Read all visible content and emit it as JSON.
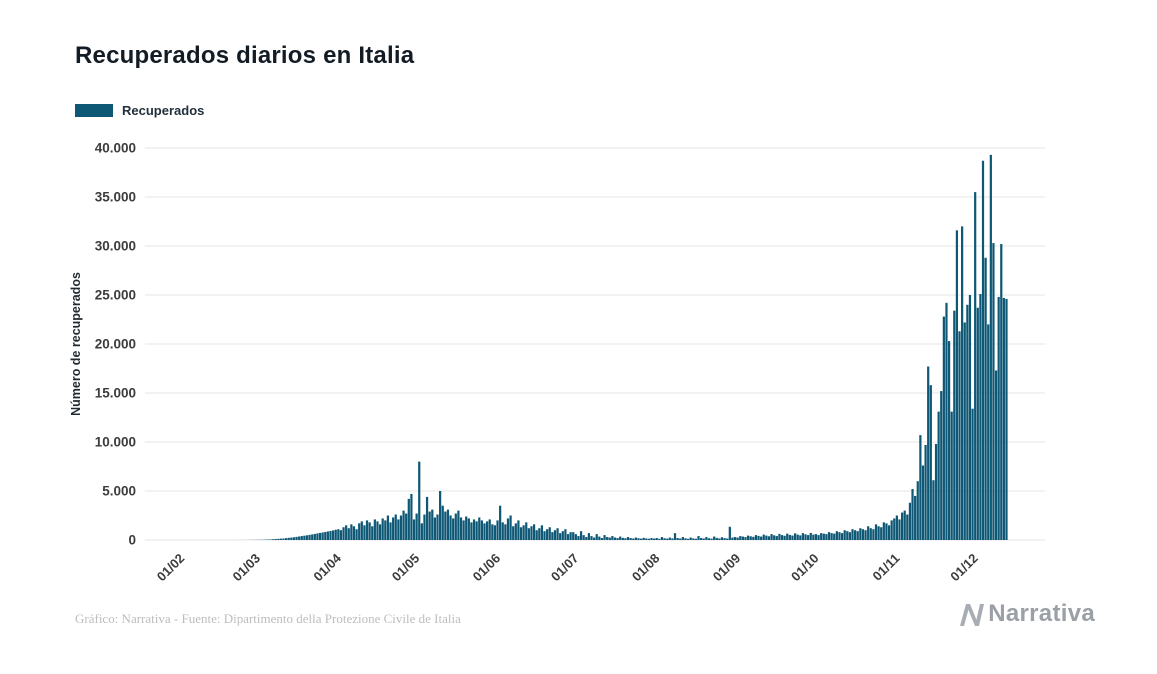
{
  "header": {
    "title": "Recuperados diarios en Italia"
  },
  "legend": {
    "label": "Recuperados"
  },
  "footer": {
    "credit": "Gráfico: Narrativa - Fuente: Dipartimento della Protezione Civile de Italia"
  },
  "brand": {
    "name": "Narrativa"
  },
  "colors": {
    "bar": "#0e5876",
    "grid": "#e4e4e4",
    "axis_text": "#3c3c3c",
    "title_text": "#131c24",
    "footer_text": "#bdbdbd",
    "brand_text": "#9aa0a6"
  },
  "chart_data": {
    "type": "bar",
    "title": "Recuperados diarios en Italia",
    "xlabel": "",
    "ylabel": "Número de recuperados",
    "ylim": [
      0,
      40000
    ],
    "grid": "horizontal",
    "legend_position": "top-left",
    "series_name": "Recuperados",
    "y_ticks": [
      {
        "value": 0,
        "label": "0"
      },
      {
        "value": 5000,
        "label": "5.000"
      },
      {
        "value": 10000,
        "label": "10.000"
      },
      {
        "value": 15000,
        "label": "15.000"
      },
      {
        "value": 20000,
        "label": "20.000"
      },
      {
        "value": 25000,
        "label": "25.000"
      },
      {
        "value": 30000,
        "label": "30.000"
      },
      {
        "value": 35000,
        "label": "35.000"
      },
      {
        "value": 40000,
        "label": "40.000"
      }
    ],
    "x_ticks": [
      {
        "index": 0,
        "label": "01/02"
      },
      {
        "index": 29,
        "label": "01/03"
      },
      {
        "index": 60,
        "label": "01/04"
      },
      {
        "index": 90,
        "label": "01/05"
      },
      {
        "index": 121,
        "label": "01/06"
      },
      {
        "index": 151,
        "label": "01/07"
      },
      {
        "index": 182,
        "label": "01/08"
      },
      {
        "index": 213,
        "label": "01/09"
      },
      {
        "index": 243,
        "label": "01/10"
      },
      {
        "index": 274,
        "label": "01/11"
      },
      {
        "index": 304,
        "label": "01/12"
      }
    ],
    "values": [
      0,
      0,
      0,
      0,
      0,
      0,
      0,
      0,
      0,
      0,
      0,
      0,
      0,
      0,
      0,
      0,
      0,
      0,
      0,
      0,
      1,
      1,
      2,
      2,
      3,
      3,
      5,
      8,
      12,
      15,
      20,
      25,
      30,
      40,
      50,
      60,
      80,
      100,
      120,
      140,
      160,
      190,
      220,
      250,
      280,
      320,
      360,
      400,
      440,
      480,
      520,
      570,
      620,
      670,
      720,
      770,
      820,
      870,
      920,
      980,
      1050,
      1100,
      1000,
      1300,
      1500,
      1200,
      1600,
      1400,
      1100,
      1700,
      1900,
      1500,
      2000,
      1800,
      1400,
      2100,
      1900,
      1600,
      2200,
      2000,
      2500,
      1800,
      2300,
      2600,
      2100,
      2500,
      3000,
      2700,
      4200,
      4700,
      2100,
      2700,
      8000,
      1700,
      2600,
      4400,
      2900,
      3100,
      2300,
      2600,
      5000,
      3500,
      2900,
      3100,
      2500,
      2200,
      2700,
      3000,
      2300,
      2000,
      2400,
      2200,
      1800,
      2100,
      1900,
      2300,
      2000,
      1700,
      1900,
      2100,
      1600,
      1500,
      2000,
      3500,
      1800,
      1600,
      2200,
      2500,
      1400,
      1700,
      2000,
      1300,
      1500,
      1800,
      1200,
      1400,
      1600,
      1000,
      1200,
      1500,
      900,
      1100,
      1300,
      800,
      1000,
      1200,
      700,
      900,
      1100,
      600,
      800,
      800,
      600,
      400,
      900,
      500,
      300,
      700,
      400,
      250,
      600,
      350,
      200,
      500,
      300,
      250,
      400,
      250,
      200,
      350,
      220,
      180,
      300,
      200,
      150,
      250,
      180,
      140,
      220,
      160,
      130,
      200,
      150,
      200,
      120,
      300,
      180,
      140,
      250,
      160,
      700,
      200,
      150,
      300,
      180,
      120,
      250,
      160,
      130,
      400,
      200,
      150,
      300,
      180,
      140,
      350,
      220,
      160,
      280,
      190,
      150,
      1350,
      250,
      300,
      250,
      400,
      350,
      300,
      450,
      380,
      320,
      500,
      420,
      350,
      550,
      450,
      380,
      600,
      480,
      400,
      620,
      500,
      430,
      650,
      520,
      450,
      680,
      550,
      470,
      700,
      580,
      500,
      720,
      550,
      600,
      500,
      700,
      650,
      600,
      800,
      700,
      650,
      900,
      800,
      700,
      1000,
      900,
      800,
      1100,
      1000,
      900,
      1200,
      1100,
      1000,
      1400,
      1200,
      1100,
      1600,
      1400,
      1300,
      1800,
      1700,
      1500,
      2000,
      2200,
      2500,
      2100,
      2800,
      3000,
      2600,
      3800,
      5200,
      4500,
      6000,
      10700,
      7600,
      9700,
      17700,
      15800,
      6100,
      9800,
      13100,
      15200,
      22800,
      24200,
      20300,
      13100,
      23400,
      31600,
      21300,
      32000,
      22200,
      24000,
      25000,
      13400,
      35500,
      23700,
      25100,
      38700,
      28800,
      22000,
      39300,
      30300,
      17300,
      24800,
      30200,
      24700,
      24600
    ]
  }
}
